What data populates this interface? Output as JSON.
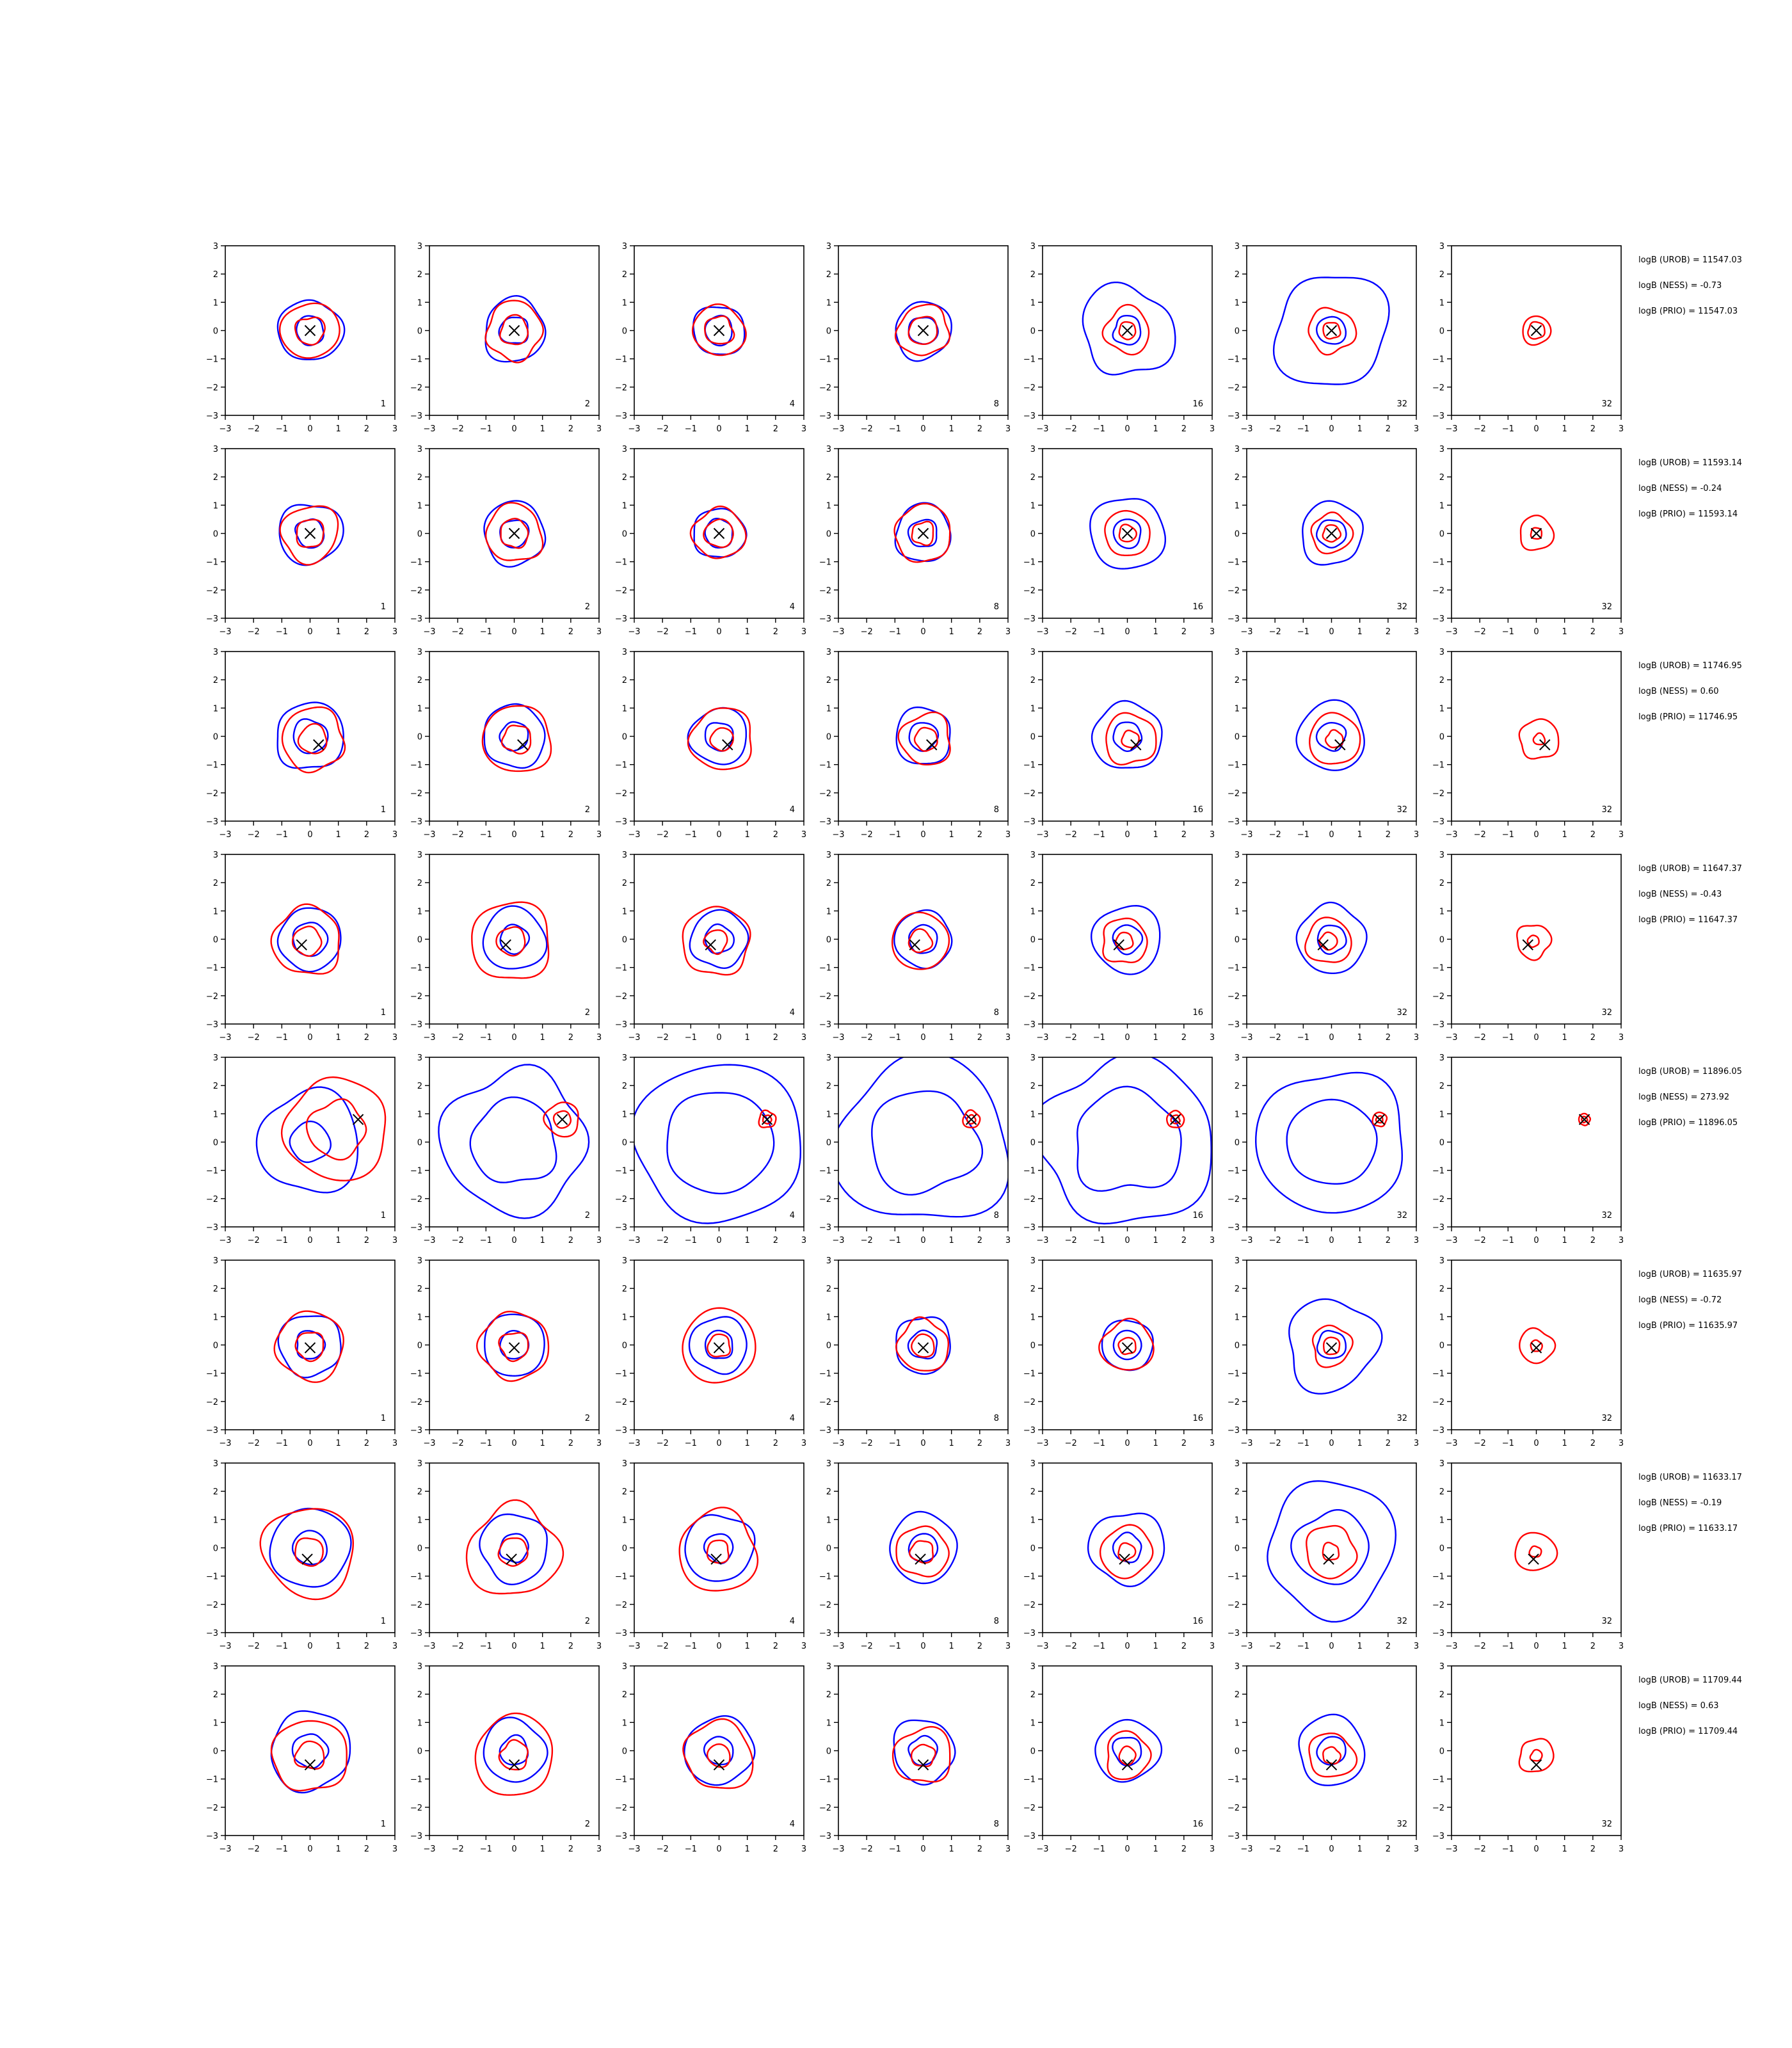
{
  "chart_data": {
    "type": "contour-grid",
    "layout": {
      "rows": 8,
      "cols": 7
    },
    "axis": {
      "xlim": [
        -3,
        3
      ],
      "ylim": [
        -3,
        3
      ],
      "ticks": [
        -3,
        -2,
        -1,
        0,
        1,
        2,
        3
      ],
      "tick_labels": [
        "−3",
        "−2",
        "−1",
        "0",
        "1",
        "2",
        "3"
      ]
    },
    "colors": {
      "series_a": "#0000ff",
      "series_b": "#ff0000",
      "marker": "#000000"
    },
    "panel_labels": [
      "1",
      "2",
      "4",
      "8",
      "16",
      "32",
      "32"
    ],
    "rows": [
      {
        "marker": [
          0.0,
          0.0
        ],
        "blue_r": [
          [
            0.5,
            1.1
          ],
          [
            0.5,
            1.1
          ],
          [
            0.5,
            0.9
          ],
          [
            0.5,
            1.0
          ],
          [
            0.5,
            1.6
          ],
          [
            0.5,
            2.0
          ],
          []
        ],
        "red_r": [
          [
            0.5,
            1.0
          ],
          [
            0.5,
            1.0
          ],
          [
            0.5,
            0.9
          ],
          [
            0.5,
            0.9
          ],
          [
            0.3,
            0.8
          ],
          [
            0.3,
            0.8
          ],
          [
            0.3,
            0.5
          ]
        ],
        "annotations": [
          "logB (UROB) = 11547.03",
          "logB (NESS) = -0.73",
          "logB (PRIO) = 11547.03"
        ]
      },
      {
        "marker": [
          0.0,
          0.0
        ],
        "blue_r": [
          [
            0.5,
            1.1
          ],
          [
            0.5,
            1.1
          ],
          [
            0.5,
            0.9
          ],
          [
            0.5,
            1.0
          ],
          [
            0.5,
            1.3
          ],
          [
            0.5,
            1.1
          ],
          []
        ],
        "red_r": [
          [
            0.5,
            1.0
          ],
          [
            0.5,
            1.0
          ],
          [
            0.5,
            0.9
          ],
          [
            0.4,
            1.0
          ],
          [
            0.3,
            0.8
          ],
          [
            0.3,
            0.7
          ],
          [
            0.2,
            0.6
          ]
        ],
        "annotations": [
          "logB (UROB) = 11593.14",
          "logB (NESS) = -0.24",
          "logB (PRIO) = 11593.14"
        ]
      },
      {
        "marker": [
          0.3,
          -0.3
        ],
        "blue_r": [
          [
            0.6,
            1.2
          ],
          [
            0.5,
            1.1
          ],
          [
            0.5,
            1.0
          ],
          [
            0.5,
            1.0
          ],
          [
            0.5,
            1.2
          ],
          [
            0.5,
            1.2
          ],
          []
        ],
        "red_r": [
          [
            0.5,
            1.1
          ],
          [
            0.5,
            1.2
          ],
          [
            0.4,
            1.1
          ],
          [
            0.4,
            0.9
          ],
          [
            0.3,
            0.9
          ],
          [
            0.3,
            0.9
          ],
          [
            0.2,
            0.7
          ]
        ],
        "annotations": [
          "logB (UROB) = 11746.95",
          "logB (NESS) = 0.60",
          "logB (PRIO) = 11746.95"
        ]
      },
      {
        "marker": [
          -0.3,
          -0.2
        ],
        "blue_r": [
          [
            0.6,
            1.1
          ],
          [
            0.5,
            1.1
          ],
          [
            0.5,
            1.0
          ],
          [
            0.5,
            1.0
          ],
          [
            0.5,
            1.2
          ],
          [
            0.5,
            1.2
          ],
          []
        ],
        "red_r": [
          [
            0.5,
            1.2
          ],
          [
            0.5,
            1.4
          ],
          [
            0.4,
            1.2
          ],
          [
            0.4,
            1.0
          ],
          [
            0.3,
            0.8
          ],
          [
            0.3,
            0.8
          ],
          [
            0.2,
            0.6
          ]
        ],
        "annotations": [
          "logB (UROB) = 11647.37",
          "logB (NESS) = -0.43",
          "logB (PRIO) = 11647.37"
        ]
      },
      {
        "marker": [
          1.7,
          0.8
        ],
        "blue_r": [
          [
            0.7,
            1.8
          ],
          [
            1.5,
            2.5
          ],
          [
            1.8,
            2.8
          ],
          [
            1.8,
            2.9
          ],
          [
            1.8,
            2.9
          ],
          [
            1.5,
            2.5
          ],
          []
        ],
        "red_r": [
          [
            1.0,
            1.8
          ],
          [
            0.3,
            0.6
          ],
          [
            0.15,
            0.3
          ],
          [
            0.15,
            0.3
          ],
          [
            0.15,
            0.3
          ],
          [
            0.12,
            0.25
          ],
          [
            0.1,
            0.2
          ]
        ],
        "annotations": [
          "logB (UROB) = 11896.05",
          "logB (NESS) = 273.92",
          "logB (PRIO) = 11896.05"
        ]
      },
      {
        "marker": [
          0.0,
          -0.1
        ],
        "blue_r": [
          [
            0.5,
            1.1
          ],
          [
            0.5,
            1.1
          ],
          [
            0.5,
            1.0
          ],
          [
            0.5,
            1.0
          ],
          [
            0.5,
            0.9
          ],
          [
            0.5,
            1.6
          ],
          []
        ],
        "red_r": [
          [
            0.5,
            1.2
          ],
          [
            0.5,
            1.2
          ],
          [
            0.4,
            1.3
          ],
          [
            0.4,
            0.9
          ],
          [
            0.3,
            0.9
          ],
          [
            0.3,
            0.7
          ],
          [
            0.2,
            0.6
          ]
        ],
        "annotations": [
          "logB (UROB) = 11635.97",
          "logB (NESS) = -0.72",
          "logB (PRIO) = 11635.97"
        ]
      },
      {
        "marker": [
          -0.1,
          -0.4
        ],
        "blue_r": [
          [
            0.6,
            1.4
          ],
          [
            0.5,
            1.2
          ],
          [
            0.5,
            1.2
          ],
          [
            0.5,
            1.2
          ],
          [
            0.5,
            1.3
          ],
          [
            1.3,
            2.3
          ],
          []
        ],
        "red_r": [
          [
            0.5,
            1.6
          ],
          [
            0.5,
            1.6
          ],
          [
            0.4,
            1.4
          ],
          [
            0.4,
            0.9
          ],
          [
            0.3,
            0.9
          ],
          [
            0.3,
            0.9
          ],
          [
            0.2,
            0.7
          ]
        ],
        "annotations": [
          "logB (UROB) = 11633.17",
          "logB (NESS) = -0.19",
          "logB (PRIO) = 11633.17"
        ]
      },
      {
        "marker": [
          0.0,
          -0.5
        ],
        "blue_r": [
          [
            0.6,
            1.4
          ],
          [
            0.5,
            1.1
          ],
          [
            0.5,
            1.2
          ],
          [
            0.5,
            1.1
          ],
          [
            0.5,
            1.1
          ],
          [
            0.5,
            1.2
          ],
          []
        ],
        "red_r": [
          [
            0.5,
            1.3
          ],
          [
            0.5,
            1.4
          ],
          [
            0.4,
            1.2
          ],
          [
            0.4,
            1.0
          ],
          [
            0.3,
            0.8
          ],
          [
            0.3,
            0.8
          ],
          [
            0.2,
            0.6
          ]
        ],
        "annotations": [
          "logB (UROB) = 11709.44",
          "logB (NESS) = 0.63",
          "logB (PRIO) = 11709.44"
        ]
      }
    ]
  }
}
